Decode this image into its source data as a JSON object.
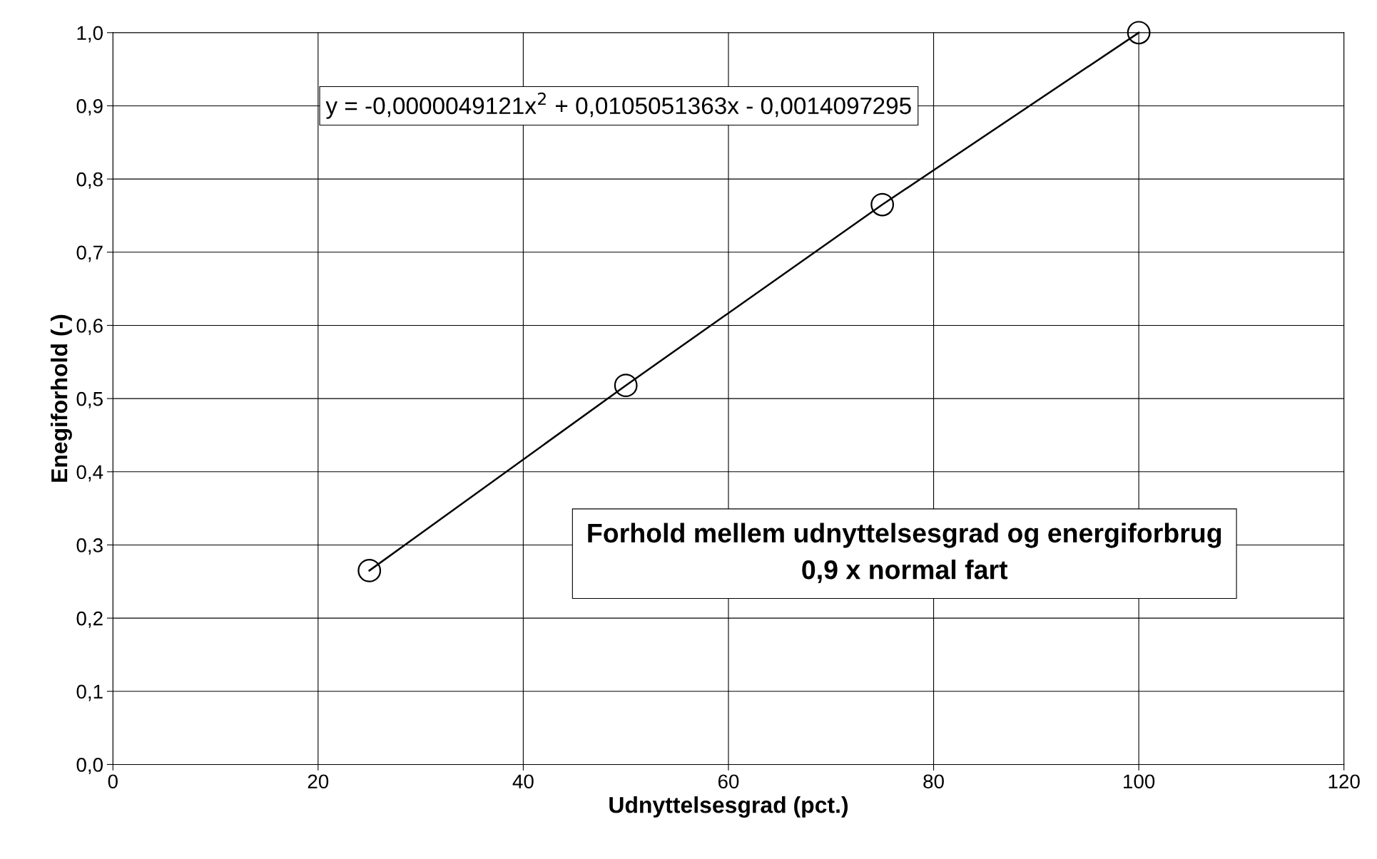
{
  "chart_data": {
    "type": "line",
    "title": "Forhold mellem udnyttelsesgrad og energiforbrug\n0,9 x normal fart",
    "xlabel": "Udnyttelsesgrad (pct.)",
    "ylabel": "Enegiforhold (-)",
    "x": [
      25,
      50,
      75,
      100
    ],
    "series": [
      {
        "color": "#000000",
        "values": [
          0.265,
          0.518,
          0.765,
          1.0
        ]
      }
    ],
    "marker": "circle",
    "line_style": "solid",
    "grid": true,
    "legend": false,
    "xlim": [
      0,
      120
    ],
    "xticks": [
      0,
      20,
      40,
      60,
      80,
      100,
      120
    ],
    "ylim": [
      0,
      1.0
    ],
    "yticks": [
      {
        "value": 0,
        "label": "0,0"
      },
      {
        "value": 0.1,
        "label": "0,1"
      },
      {
        "value": 0.2,
        "label": "0,2"
      },
      {
        "value": 0.3,
        "label": "0,3"
      },
      {
        "value": 0.4,
        "label": "0,4"
      },
      {
        "value": 0.5,
        "label": "0,5"
      },
      {
        "value": 0.6,
        "label": "0,6"
      },
      {
        "value": 0.7,
        "label": "0,7"
      },
      {
        "value": 0.8,
        "label": "0,8"
      },
      {
        "value": 0.9,
        "label": "0,9"
      },
      {
        "value": 1.0,
        "label": "1,0"
      }
    ],
    "annotations": [
      "y = -0,0000049121x$^{2}$ + 0,0105051363x - 0,0014097295"
    ]
  }
}
